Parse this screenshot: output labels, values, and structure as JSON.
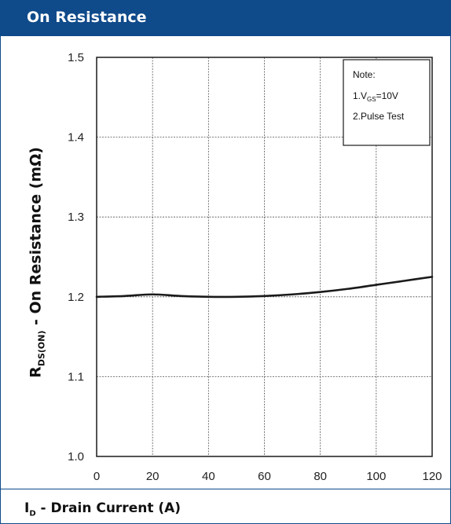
{
  "header": {
    "title": "On Resistance"
  },
  "footer": {
    "xlabel_main": "I",
    "xlabel_sub": "D",
    "xlabel_rest": " - Drain Current (A)"
  },
  "yaxis": {
    "label_main": "R",
    "label_sub": "DS(ON)",
    "label_rest": " - On Resistance (mΩ)"
  },
  "note": {
    "title": "Note:",
    "line1_prefix": "1.V",
    "line1_sub": "GS",
    "line1_rest": "=10V",
    "line2": "2.Pulse Test"
  },
  "colors": {
    "brand": "#0f4a8a",
    "curve": "#1a1a1a",
    "grid": "#555555"
  },
  "chart_data": {
    "type": "line",
    "title": "On Resistance",
    "xlabel": "ID - Drain Current (A)",
    "ylabel": "RDS(ON) - On Resistance (mΩ)",
    "xlim": [
      0,
      120
    ],
    "ylim": [
      1.0,
      1.5
    ],
    "xticks": [
      "0",
      "20",
      "40",
      "60",
      "80",
      "100",
      "120"
    ],
    "yticks": [
      "1.0",
      "1.1",
      "1.2",
      "1.3",
      "1.4",
      "1.5"
    ],
    "grid": true,
    "legend": "top-right",
    "series": [
      {
        "x": [
          0,
          10,
          20,
          30,
          40,
          50,
          60,
          70,
          80,
          90,
          100,
          110,
          120
        ],
        "values": [
          1.2,
          1.201,
          1.203,
          1.201,
          1.2,
          1.2,
          1.201,
          1.203,
          1.206,
          1.21,
          1.215,
          1.22,
          1.225
        ]
      }
    ]
  }
}
